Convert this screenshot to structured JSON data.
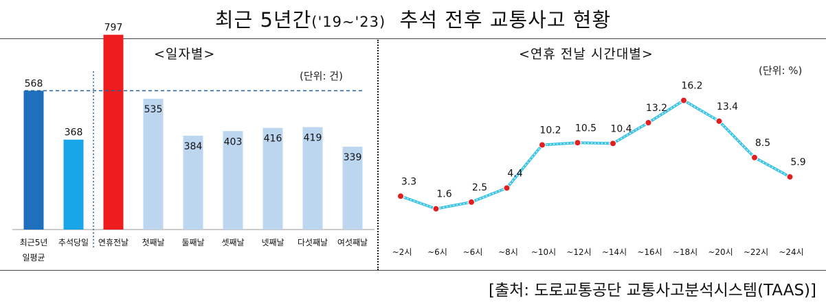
{
  "title": {
    "main_before": "최근 5년간",
    "years": "('19~'23)",
    "main_after": "추석 전후 교통사고 현황"
  },
  "source": "[출처: 도로교통공단 교통사고분석시스템(TAAS)]",
  "colors": {
    "avg_bar": "#1f6fbf",
    "chuseok_day_bar": "#19a6e8",
    "eve_bar": "#ee1c1c",
    "other_bar": "#bcd6ef",
    "avg_line": "#1f5f9a",
    "line": "#3cc4e6",
    "marker": "#e02020"
  },
  "chart_data": [
    {
      "type": "bar",
      "title": "<일자별>",
      "unit": "(단위: 건)",
      "categories": [
        "최근5년\n일평균",
        "추석당일",
        "연휴전날",
        "첫째날",
        "둘째날",
        "셋째날",
        "넷째날",
        "다섯째날",
        "여섯째날"
      ],
      "values": [
        568,
        368,
        797,
        535,
        384,
        403,
        416,
        419,
        339
      ],
      "ylim": [
        0,
        900
      ],
      "reference_line": 568,
      "grid": false
    },
    {
      "type": "line",
      "title": "<연휴 전날 시간대별>",
      "unit": "(단위: %)",
      "categories": [
        "~2시",
        "~6시",
        "~6시",
        "~8시",
        "~10시",
        "~12시",
        "~14시",
        "~16시",
        "~18시",
        "~20시",
        "~22시",
        "~24시"
      ],
      "values": [
        3.3,
        1.6,
        2.5,
        4.4,
        10.2,
        10.5,
        10.4,
        13.2,
        16.2,
        13.4,
        8.5,
        5.9
      ],
      "ylim": [
        0,
        18
      ],
      "grid": false
    }
  ]
}
